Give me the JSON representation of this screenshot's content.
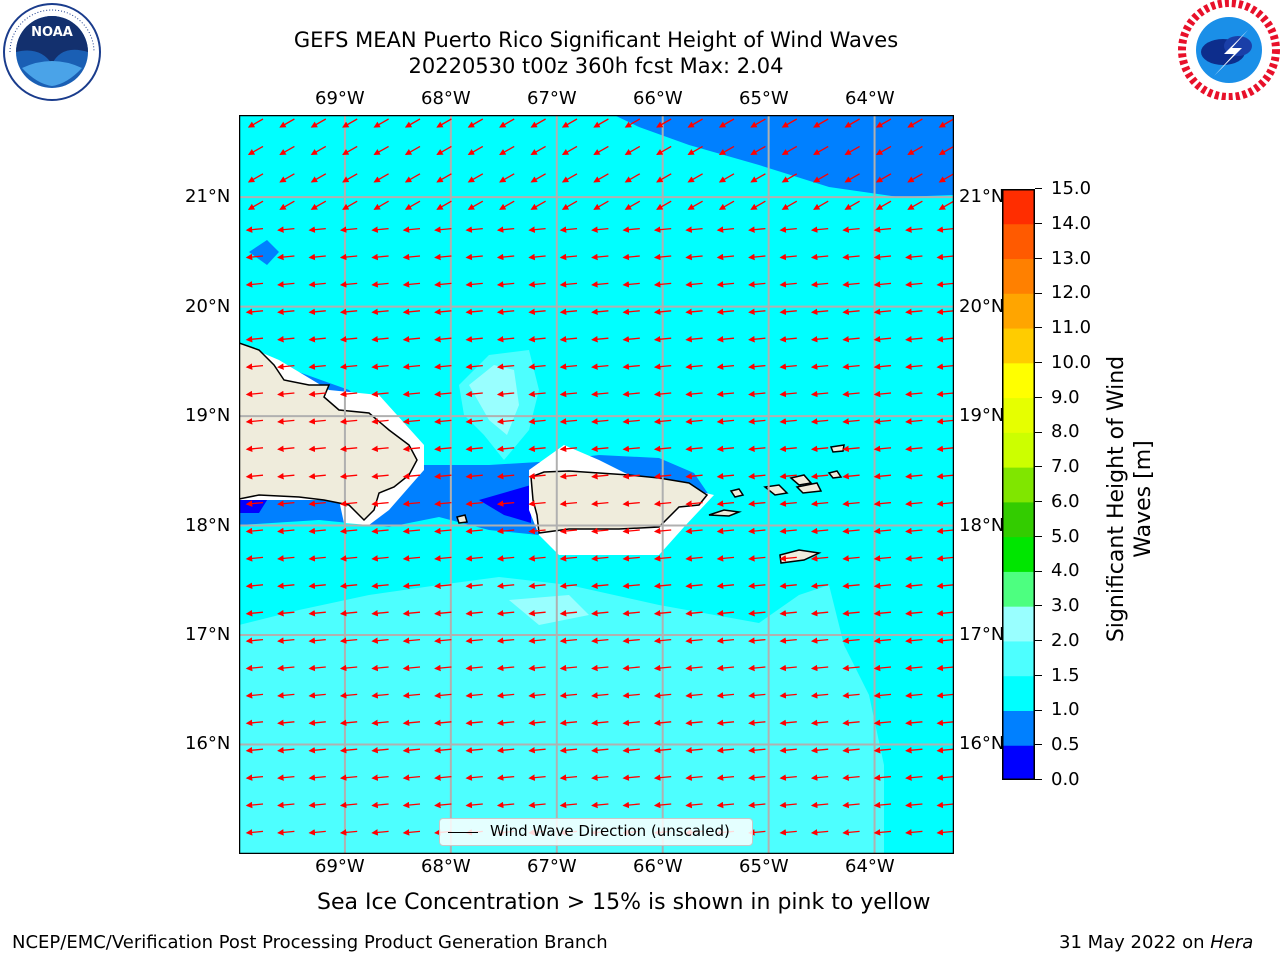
{
  "title": {
    "line1": "GEFS MEAN Puerto Rico Significant Height of Wind Waves",
    "line2": "20220530 t00z 360h fcst   Max: 2.04"
  },
  "logos": {
    "left": {
      "name": "NOAA",
      "ring_text": "NATIONAL OCEANIC AND ATMOSPHERIC ADMINISTRATION · U.S. DEPARTMENT OF COMMERCE"
    },
    "right": {
      "name": "NATIONAL WEATHER SERVICE"
    }
  },
  "map": {
    "lon_labels": [
      "69°W",
      "68°W",
      "67°W",
      "66°W",
      "65°W",
      "64°W"
    ],
    "lat_labels": [
      "21°N",
      "20°N",
      "19°N",
      "18°N",
      "17°N",
      "16°N"
    ],
    "lon_values": [
      -69,
      -68,
      -67,
      -66,
      -65,
      -64
    ],
    "lat_values": [
      21,
      20,
      19,
      18,
      17,
      16
    ],
    "extent": {
      "lon": [
        -70.0,
        -63.25
      ],
      "lat": [
        15.0,
        21.75
      ]
    },
    "vector_direction": "toward west-southwest",
    "vector_color": "#ff0000",
    "land_color": "#efecdc",
    "legend_label": "Wind Wave Direction (unscaled)"
  },
  "colorbar": {
    "label": "Significant Height of Wind Waves [m]",
    "levels": [
      "0.0",
      "0.5",
      "1.0",
      "1.5",
      "2.0",
      "3.0",
      "4.0",
      "5.0",
      "6.0",
      "7.0",
      "8.0",
      "9.0",
      "10.0",
      "11.0",
      "12.0",
      "13.0",
      "14.0",
      "15.0"
    ],
    "colors": [
      "#0000ff",
      "#0080ff",
      "#00ffff",
      "#4dffff",
      "#99ffff",
      "#4dff80",
      "#00e600",
      "#33cc00",
      "#80e600",
      "#ccff00",
      "#e6ff00",
      "#ffff00",
      "#ffcc00",
      "#ffa500",
      "#ff8000",
      "#ff5a00",
      "#ff2d00"
    ]
  },
  "note": "Sea Ice Concentration > 15% is shown in pink to yellow",
  "footer": {
    "left": "NCEP/EMC/Verification Post Processing Product Generation Branch",
    "right_prefix": "31 May 2022 on ",
    "right_machine": "Hera"
  }
}
